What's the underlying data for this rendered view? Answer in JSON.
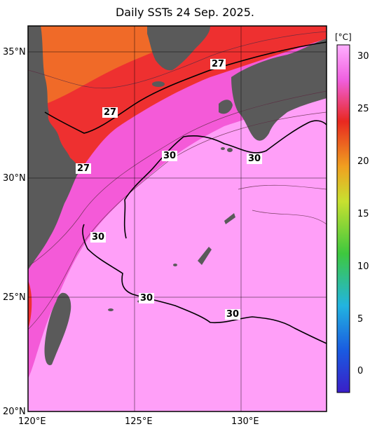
{
  "title": "Daily SSTs 24 Sep. 2025.",
  "axes": {
    "lat_labels": [
      "35°N",
      "30°N",
      "25°N",
      "20°N"
    ],
    "lon_labels": [
      "120°E",
      "125°E",
      "130°E"
    ]
  },
  "colorbar": {
    "unit": "[°C]",
    "ticks": [
      "30",
      "25",
      "20",
      "15",
      "10",
      "5",
      "0"
    ],
    "colors": [
      "#3a1fc8",
      "#1a5ae0",
      "#22b4e0",
      "#3ec83e",
      "#c8e030",
      "#f0a020",
      "#e82820",
      "#f060e0",
      "#ffb0ff"
    ]
  },
  "contour_labels": [
    "27",
    "27",
    "27",
    "30",
    "30",
    "30",
    "30",
    "30"
  ],
  "colors": {
    "land": "#5a5a5a",
    "warm_sea": "#ff9ff8",
    "mid_sea": "#f045d8",
    "hot_sea": "#e8302a"
  }
}
